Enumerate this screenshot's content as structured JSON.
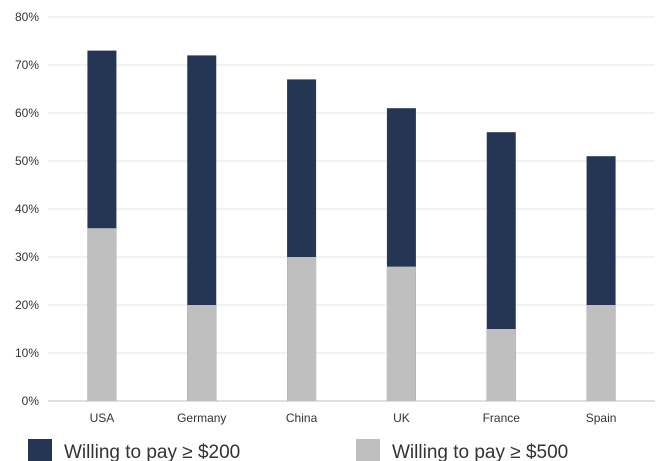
{
  "chart_data": {
    "type": "bar",
    "stacked": false,
    "overlapping": true,
    "categories": [
      "USA",
      "Germany",
      "China",
      "UK",
      "France",
      "Spain"
    ],
    "series": [
      {
        "name": "Willing to pay ≥ $200",
        "values": [
          73,
          72,
          67,
          61,
          56,
          51
        ],
        "color": "#253654"
      },
      {
        "name": "Willing to pay ≥ $500",
        "values": [
          36,
          20,
          30,
          28,
          15,
          20
        ],
        "color": "#bfbfbf"
      }
    ],
    "yticks": [
      "0%",
      "10%",
      "20%",
      "30%",
      "40%",
      "50%",
      "60%",
      "70%",
      "80%"
    ],
    "ylim": [
      0,
      80
    ],
    "grid": true,
    "legend": "bottom"
  }
}
